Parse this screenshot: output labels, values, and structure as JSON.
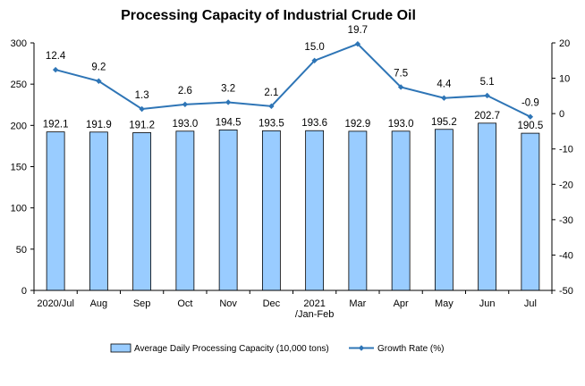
{
  "chart_data": {
    "type": "bar",
    "title": "Processing Capacity of Industrial Crude Oil",
    "categories": [
      "2020/Jul",
      "Aug",
      "Sep",
      "Oct",
      "Nov",
      "Dec",
      "2021\n/Jan-Feb",
      "Mar",
      "Apr",
      "May",
      "Jun",
      "Jul"
    ],
    "series": [
      {
        "name": "Average Daily Processing Capacity (10,000 tons)",
        "type": "bar",
        "axis": "left",
        "color": "#99ccff",
        "values": [
          192.1,
          191.9,
          191.2,
          193.0,
          194.5,
          193.5,
          193.6,
          192.9,
          193.0,
          195.2,
          202.7,
          190.5
        ],
        "labels": [
          "192.1",
          "191.9",
          "191.2",
          "193.0",
          "194.5",
          "193.5",
          "193.6",
          "192.9",
          "193.0",
          "195.2",
          "202.7",
          "190.5"
        ]
      },
      {
        "name": "Growth Rate (%)",
        "type": "line",
        "axis": "right",
        "color": "#2e75b6",
        "values": [
          12.4,
          9.2,
          1.3,
          2.6,
          3.2,
          2.1,
          15.0,
          19.7,
          7.5,
          4.4,
          5.1,
          -0.9
        ],
        "labels": [
          "12.4",
          "9.2",
          "1.3",
          "2.6",
          "3.2",
          "2.1",
          "15.0",
          "19.7",
          "7.5",
          "4.4",
          "5.1",
          "-0.9"
        ]
      }
    ],
    "y_left": {
      "min": 0,
      "max": 300,
      "ticks": [
        0,
        50,
        100,
        150,
        200,
        250,
        300
      ]
    },
    "y_right": {
      "min": -50,
      "max": 20,
      "ticks": [
        -50,
        -40,
        -30,
        -20,
        -10,
        0,
        10,
        20
      ]
    },
    "grid": false,
    "legend_position": "bottom"
  }
}
